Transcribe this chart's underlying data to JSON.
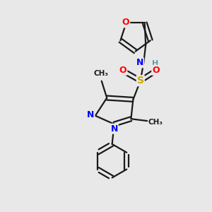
{
  "background_color": "#e8e8e8",
  "bond_color": "#1a1a1a",
  "atom_colors": {
    "N": "#0000ff",
    "O": "#ff0000",
    "S": "#ccaa00",
    "H": "#5f9ea0",
    "C": "#1a1a1a"
  },
  "figsize": [
    3.0,
    3.0
  ],
  "dpi": 100,
  "xlim": [
    0,
    10
  ],
  "ylim": [
    0,
    10
  ]
}
